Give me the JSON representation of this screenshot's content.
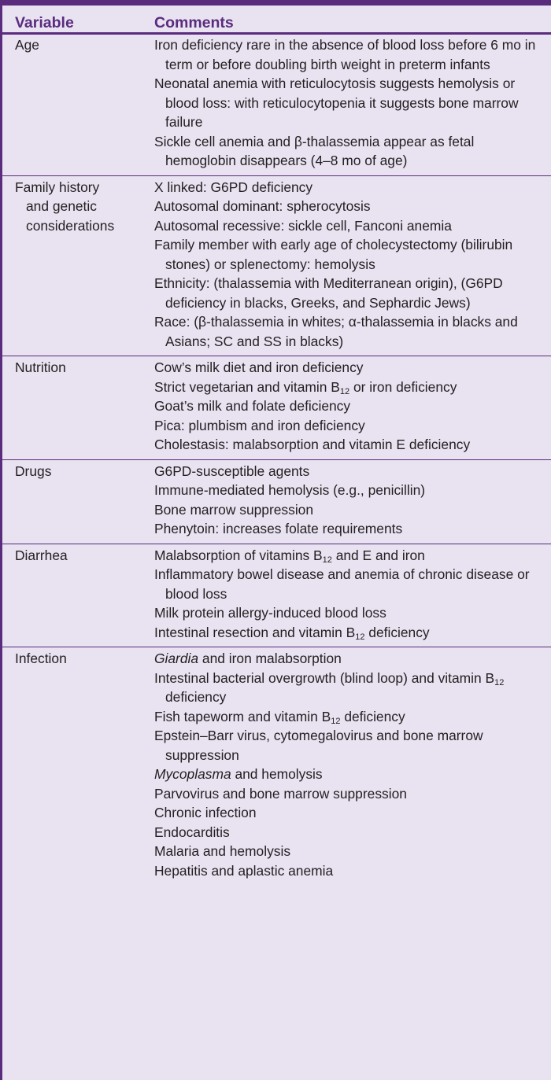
{
  "table": {
    "headers": [
      "Variable",
      "Comments"
    ],
    "rows": [
      {
        "variable": [
          "Age"
        ],
        "comments": [
          [
            {
              "t": "Iron deficiency rare in the absence of blood loss before 6 mo in term or before doubling birth weight in preterm infants"
            }
          ],
          [
            {
              "t": "Neonatal anemia with reticulocytosis suggests hemolysis or blood loss: with reticulocytopenia it suggests bone marrow failure"
            }
          ],
          [
            {
              "t": "Sickle cell anemia and β-thalassemia appear as fetal hemoglobin disappears (4–8 mo of age)"
            }
          ]
        ]
      },
      {
        "variable": [
          "Family history",
          "and genetic",
          "considerations"
        ],
        "comments": [
          [
            {
              "t": "X linked: G6PD deficiency"
            }
          ],
          [
            {
              "t": "Autosomal dominant: spherocytosis"
            }
          ],
          [
            {
              "t": "Autosomal recessive: sickle cell, Fanconi anemia"
            }
          ],
          [
            {
              "t": "Family member with early age of cholecystectomy (bilirubin stones) or splenectomy: hemolysis"
            }
          ],
          [
            {
              "t": "Ethnicity: (thalassemia with Mediterranean origin), (G6PD deficiency in blacks, Greeks, and Sephardic Jews)"
            }
          ],
          [
            {
              "t": "Race: (β-thalassemia in whites; α-thalassemia in blacks and Asians; SC and SS in blacks)"
            }
          ]
        ]
      },
      {
        "variable": [
          "Nutrition"
        ],
        "comments": [
          [
            {
              "t": "Cow’s milk diet and iron deficiency"
            }
          ],
          [
            {
              "t": "Strict vegetarian and vitamin B"
            },
            {
              "t": "12",
              "sub": true
            },
            {
              "t": " or iron deficiency"
            }
          ],
          [
            {
              "t": "Goat’s milk and folate deficiency"
            }
          ],
          [
            {
              "t": "Pica: plumbism and iron deficiency"
            }
          ],
          [
            {
              "t": "Cholestasis: malabsorption and vitamin E deficiency"
            }
          ]
        ]
      },
      {
        "variable": [
          "Drugs"
        ],
        "comments": [
          [
            {
              "t": "G6PD-susceptible agents"
            }
          ],
          [
            {
              "t": "Immune-mediated hemolysis (e.g., penicillin)"
            }
          ],
          [
            {
              "t": "Bone marrow suppression"
            }
          ],
          [
            {
              "t": "Phenytoin: increases folate requirements"
            }
          ]
        ]
      },
      {
        "variable": [
          "Diarrhea"
        ],
        "comments": [
          [
            {
              "t": "Malabsorption of vitamins B"
            },
            {
              "t": "12",
              "sub": true
            },
            {
              "t": " and E and iron"
            }
          ],
          [
            {
              "t": "Inflammatory bowel disease and anemia of chronic disease or blood loss"
            }
          ],
          [
            {
              "t": "Milk protein allergy-induced blood loss"
            }
          ],
          [
            {
              "t": "Intestinal resection and vitamin B"
            },
            {
              "t": "12",
              "sub": true
            },
            {
              "t": " deficiency"
            }
          ]
        ]
      },
      {
        "variable": [
          "Infection"
        ],
        "comments": [
          [
            {
              "t": "Giardia",
              "i": true
            },
            {
              "t": " and iron malabsorption"
            }
          ],
          [
            {
              "t": "Intestinal bacterial overgrowth (blind loop) and vitamin B"
            },
            {
              "t": "12",
              "sub": true
            },
            {
              "t": " deficiency"
            }
          ],
          [
            {
              "t": "Fish tapeworm and vitamin B"
            },
            {
              "t": "12",
              "sub": true
            },
            {
              "t": " deficiency"
            }
          ],
          [
            {
              "t": "Epstein–Barr virus, cytomegalovirus and bone marrow suppression"
            }
          ],
          [
            {
              "t": "Mycoplasma",
              "i": true
            },
            {
              "t": " and hemolysis"
            }
          ],
          [
            {
              "t": "Parvovirus and bone marrow suppression"
            }
          ],
          [
            {
              "t": "Chronic infection"
            }
          ],
          [
            {
              "t": "Endocarditis"
            }
          ],
          [
            {
              "t": "Malaria and hemolysis"
            }
          ],
          [
            {
              "t": "Hepatitis and aplastic anemia"
            }
          ]
        ]
      }
    ]
  },
  "colors": {
    "accent": "#5a2c7e",
    "background": "#e8e2f1",
    "text": "#231f20"
  }
}
